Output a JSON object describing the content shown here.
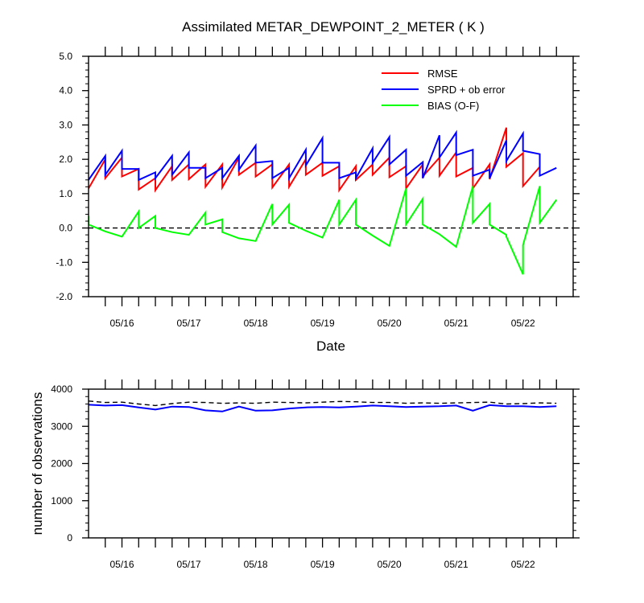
{
  "chart_data": [
    {
      "type": "line",
      "title": "Assimilated METAR_DEWPOINT_2_METER ( K )",
      "xlabel": "Date",
      "ylabel": "",
      "x_tick_labels": [
        "05/16",
        "05/17",
        "05/18",
        "05/19",
        "05/20",
        "05/21",
        "05/22"
      ],
      "x_tick_positions": [
        1,
        2,
        3,
        4,
        5,
        6,
        7
      ],
      "x_range": [
        0.5,
        7.75
      ],
      "ylim": [
        -2.0,
        5.0
      ],
      "y_ticks": [
        -2.0,
        -1.0,
        0.0,
        1.0,
        2.0,
        3.0,
        4.0,
        5.0
      ],
      "y_tick_labels": [
        "-2.0",
        "-1.0",
        "0.0",
        "1.0",
        "2.0",
        "3.0",
        "4.0",
        "5.0"
      ],
      "zero_line": "dashed",
      "legend_placement": "top-right",
      "series": [
        {
          "name": "RMSE",
          "color": "#ff0000",
          "points": [
            [
              0.5,
              1.15
            ],
            [
              0.75,
              2.0
            ],
            [
              0.75,
              1.45
            ],
            [
              1.0,
              2.05
            ],
            [
              1.0,
              1.5
            ],
            [
              1.25,
              1.72
            ],
            [
              1.25,
              1.12
            ],
            [
              1.5,
              1.45
            ],
            [
              1.5,
              1.1
            ],
            [
              1.75,
              1.8
            ],
            [
              1.75,
              1.4
            ],
            [
              2.0,
              1.85
            ],
            [
              2.0,
              1.42
            ],
            [
              2.25,
              1.85
            ],
            [
              2.25,
              1.2
            ],
            [
              2.5,
              1.85
            ],
            [
              2.5,
              1.18
            ],
            [
              2.75,
              2.05
            ],
            [
              2.75,
              1.55
            ],
            [
              3.0,
              1.9
            ],
            [
              3.0,
              1.5
            ],
            [
              3.25,
              1.85
            ],
            [
              3.25,
              1.18
            ],
            [
              3.5,
              1.85
            ],
            [
              3.5,
              1.2
            ],
            [
              3.75,
              2.0
            ],
            [
              3.75,
              1.55
            ],
            [
              4.0,
              1.9
            ],
            [
              4.0,
              1.52
            ],
            [
              4.25,
              1.8
            ],
            [
              4.25,
              1.1
            ],
            [
              4.5,
              1.8
            ],
            [
              4.5,
              1.4
            ],
            [
              4.75,
              1.85
            ],
            [
              4.75,
              1.55
            ],
            [
              5.0,
              2.05
            ],
            [
              5.0,
              1.48
            ],
            [
              5.25,
              1.8
            ],
            [
              5.25,
              1.15
            ],
            [
              5.5,
              1.85
            ],
            [
              5.5,
              1.5
            ],
            [
              5.75,
              2.05
            ],
            [
              5.75,
              1.52
            ],
            [
              6.0,
              2.2
            ],
            [
              6.0,
              1.5
            ],
            [
              6.25,
              1.75
            ],
            [
              6.25,
              1.15
            ],
            [
              6.5,
              1.85
            ],
            [
              6.5,
              1.42
            ],
            [
              6.75,
              2.92
            ],
            [
              6.75,
              1.78
            ],
            [
              7.0,
              2.18
            ],
            [
              7.0,
              1.22
            ],
            [
              7.25,
              1.78
            ]
          ]
        },
        {
          "name": "SPRD + ob error",
          "color": "#0000ff",
          "points": [
            [
              0.5,
              1.4
            ],
            [
              0.75,
              2.1
            ],
            [
              0.75,
              1.55
            ],
            [
              1.0,
              2.25
            ],
            [
              1.0,
              1.72
            ],
            [
              1.25,
              1.72
            ],
            [
              1.25,
              1.4
            ],
            [
              1.5,
              1.62
            ],
            [
              1.5,
              1.45
            ],
            [
              1.75,
              2.1
            ],
            [
              1.75,
              1.55
            ],
            [
              2.0,
              2.2
            ],
            [
              2.0,
              1.75
            ],
            [
              2.25,
              1.75
            ],
            [
              2.25,
              1.45
            ],
            [
              2.5,
              1.75
            ],
            [
              2.5,
              1.45
            ],
            [
              2.75,
              2.1
            ],
            [
              2.75,
              1.7
            ],
            [
              3.0,
              2.4
            ],
            [
              3.0,
              1.9
            ],
            [
              3.25,
              1.95
            ],
            [
              3.25,
              1.45
            ],
            [
              3.5,
              1.75
            ],
            [
              3.5,
              1.45
            ],
            [
              3.75,
              2.28
            ],
            [
              3.75,
              1.82
            ],
            [
              4.0,
              2.62
            ],
            [
              4.0,
              1.9
            ],
            [
              4.25,
              1.9
            ],
            [
              4.25,
              1.45
            ],
            [
              4.5,
              1.62
            ],
            [
              4.5,
              1.45
            ],
            [
              4.75,
              2.32
            ],
            [
              4.75,
              1.9
            ],
            [
              5.0,
              2.65
            ],
            [
              5.0,
              1.85
            ],
            [
              5.25,
              2.28
            ],
            [
              5.25,
              1.52
            ],
            [
              5.5,
              1.92
            ],
            [
              5.5,
              1.45
            ],
            [
              5.75,
              2.7
            ],
            [
              5.75,
              2.05
            ],
            [
              6.0,
              2.78
            ],
            [
              6.0,
              2.12
            ],
            [
              6.25,
              2.28
            ],
            [
              6.25,
              1.52
            ],
            [
              6.5,
              1.7
            ],
            [
              6.5,
              1.45
            ],
            [
              6.75,
              2.55
            ],
            [
              6.75,
              1.95
            ],
            [
              7.0,
              2.75
            ],
            [
              7.0,
              2.25
            ],
            [
              7.25,
              2.15
            ],
            [
              7.25,
              1.52
            ],
            [
              7.5,
              1.75
            ]
          ]
        },
        {
          "name": "BIAS (O-F)",
          "color": "#00ff00",
          "points": [
            [
              0.5,
              0.35
            ],
            [
              0.5,
              0.1
            ],
            [
              0.75,
              -0.1
            ],
            [
              1.0,
              -0.25
            ],
            [
              1.25,
              0.48
            ],
            [
              1.25,
              0.0
            ],
            [
              1.5,
              0.35
            ],
            [
              1.5,
              0.0
            ],
            [
              1.75,
              -0.12
            ],
            [
              2.0,
              -0.2
            ],
            [
              2.25,
              0.45
            ],
            [
              2.25,
              0.1
            ],
            [
              2.5,
              0.25
            ],
            [
              2.5,
              -0.12
            ],
            [
              2.75,
              -0.3
            ],
            [
              3.0,
              -0.38
            ],
            [
              3.25,
              0.7
            ],
            [
              3.25,
              0.1
            ],
            [
              3.5,
              0.68
            ],
            [
              3.5,
              0.15
            ],
            [
              3.75,
              -0.08
            ],
            [
              4.0,
              -0.28
            ],
            [
              4.25,
              0.82
            ],
            [
              4.25,
              0.1
            ],
            [
              4.5,
              0.82
            ],
            [
              4.5,
              0.1
            ],
            [
              4.75,
              -0.22
            ],
            [
              5.0,
              -0.52
            ],
            [
              5.25,
              1.15
            ],
            [
              5.25,
              0.1
            ],
            [
              5.5,
              0.85
            ],
            [
              5.5,
              0.1
            ],
            [
              5.75,
              -0.18
            ],
            [
              6.0,
              -0.55
            ],
            [
              6.25,
              1.22
            ],
            [
              6.25,
              0.15
            ],
            [
              6.5,
              0.7
            ],
            [
              6.5,
              0.1
            ],
            [
              6.75,
              -0.2
            ],
            [
              6.75,
              -0.25
            ],
            [
              7.0,
              -1.35
            ],
            [
              7.0,
              -0.5
            ],
            [
              7.25,
              1.22
            ],
            [
              7.25,
              0.15
            ],
            [
              7.5,
              0.82
            ]
          ]
        }
      ]
    },
    {
      "type": "line",
      "title": "",
      "xlabel": "",
      "ylabel": "number of observations",
      "x_tick_labels": [
        "05/16",
        "05/17",
        "05/18",
        "05/19",
        "05/20",
        "05/21",
        "05/22"
      ],
      "x_tick_positions": [
        1,
        2,
        3,
        4,
        5,
        6,
        7
      ],
      "x_range": [
        0.5,
        7.75
      ],
      "ylim": [
        0,
        4000
      ],
      "y_ticks": [
        0,
        1000,
        2000,
        3000,
        4000
      ],
      "y_tick_labels": [
        "0",
        "1000",
        "2000",
        "3000",
        "4000"
      ],
      "series": [
        {
          "name": "",
          "color": "#000000",
          "dashed": true,
          "points": [
            [
              0.5,
              3680
            ],
            [
              0.75,
              3640
            ],
            [
              1.0,
              3650
            ],
            [
              1.25,
              3600
            ],
            [
              1.5,
              3560
            ],
            [
              1.75,
              3610
            ],
            [
              2.0,
              3650
            ],
            [
              2.25,
              3640
            ],
            [
              2.5,
              3620
            ],
            [
              2.75,
              3630
            ],
            [
              3.0,
              3620
            ],
            [
              3.25,
              3650
            ],
            [
              3.5,
              3640
            ],
            [
              3.75,
              3630
            ],
            [
              4.0,
              3650
            ],
            [
              4.25,
              3670
            ],
            [
              4.5,
              3660
            ],
            [
              4.75,
              3640
            ],
            [
              5.0,
              3640
            ],
            [
              5.25,
              3620
            ],
            [
              5.5,
              3630
            ],
            [
              5.75,
              3620
            ],
            [
              6.0,
              3630
            ],
            [
              6.25,
              3640
            ],
            [
              6.5,
              3650
            ],
            [
              6.75,
              3600
            ],
            [
              7.0,
              3610
            ],
            [
              7.25,
              3630
            ],
            [
              7.5,
              3620
            ]
          ]
        },
        {
          "name": "",
          "color": "#0000ff",
          "points": [
            [
              0.5,
              3580
            ],
            [
              0.75,
              3560
            ],
            [
              1.0,
              3570
            ],
            [
              1.25,
              3510
            ],
            [
              1.5,
              3450
            ],
            [
              1.75,
              3530
            ],
            [
              2.0,
              3520
            ],
            [
              2.25,
              3430
            ],
            [
              2.5,
              3400
            ],
            [
              2.75,
              3530
            ],
            [
              3.0,
              3420
            ],
            [
              3.25,
              3430
            ],
            [
              3.5,
              3480
            ],
            [
              3.75,
              3510
            ],
            [
              4.0,
              3520
            ],
            [
              4.25,
              3510
            ],
            [
              4.5,
              3530
            ],
            [
              4.75,
              3560
            ],
            [
              5.0,
              3540
            ],
            [
              5.25,
              3520
            ],
            [
              5.5,
              3530
            ],
            [
              5.75,
              3540
            ],
            [
              6.0,
              3560
            ],
            [
              6.25,
              3420
            ],
            [
              6.5,
              3570
            ],
            [
              6.75,
              3540
            ],
            [
              7.0,
              3540
            ],
            [
              7.25,
              3520
            ],
            [
              7.5,
              3540
            ]
          ]
        }
      ]
    }
  ]
}
